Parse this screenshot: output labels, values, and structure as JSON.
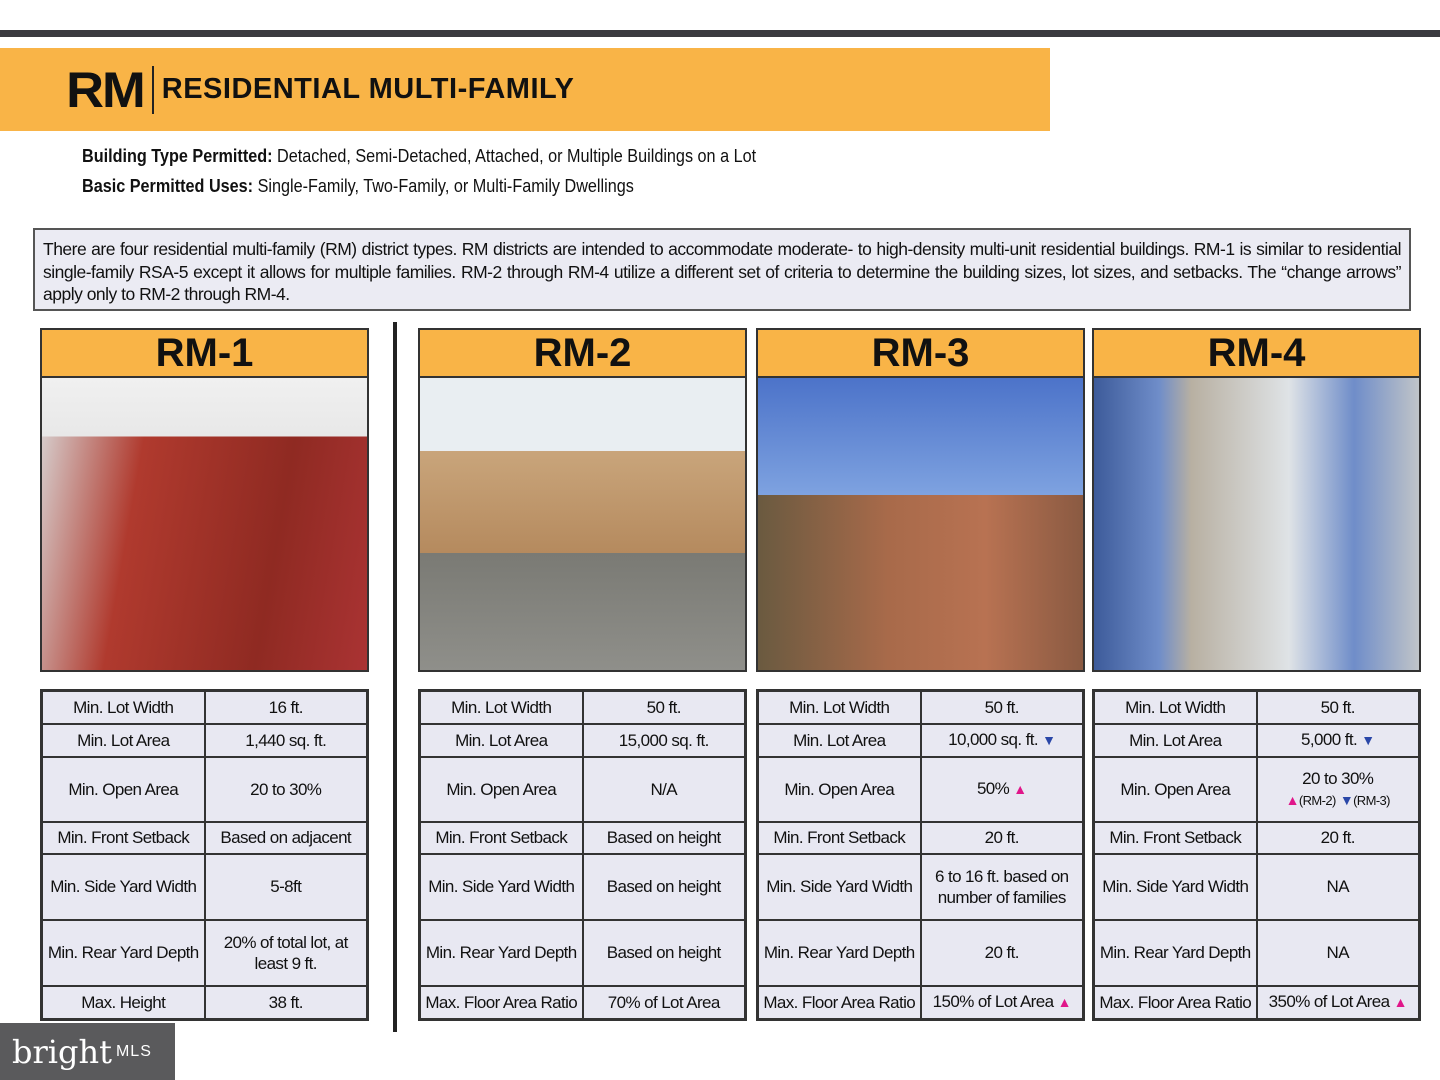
{
  "banner": {
    "code": "RM",
    "title": "RESIDENTIAL MULTI-FAMILY"
  },
  "info": [
    {
      "label": "Building Type Permitted:",
      "value": " Detached, Semi-Detached, Attached, or Multiple Buildings on a Lot"
    },
    {
      "label": "Basic Permitted Uses:",
      "value": " Single-Family, Two-Family, or Multi-Family Dwellings"
    }
  ],
  "description": "There are four residential multi-family (RM) district types. RM districts are intended to accommodate moderate- to high-density multi-unit residential buildings. RM-1 is similar to residential single-family RSA-5 except it allows for multiple families. RM-2 through RM-4 utilize a different set of criteria to determine the building sizes, lot sizes, and setbacks. The “change arrows” apply only to RM-2 through RM-4.",
  "colors": {
    "accent": "#f9b447",
    "up_arrow": "#e0168a",
    "down_arrow": "#2a47a8"
  },
  "districts": [
    {
      "name": "RM-1",
      "photo": "brick-rowhouses-photo",
      "rows": [
        {
          "label": "Min. Lot Width",
          "value": "16 ft."
        },
        {
          "label": "Min. Lot Area",
          "value": "1,440 sq. ft."
        },
        {
          "label": "Min. Open Area",
          "value": "20 to 30%"
        },
        {
          "label": "Min. Front Setback",
          "value": "Based on adjacent"
        },
        {
          "label": "Min. Side Yard Width",
          "value": "5-8ft"
        },
        {
          "label": "Min. Rear Yard Depth",
          "value": "20% of total lot, at least 9 ft."
        },
        {
          "label": "Max. Height",
          "value": "38 ft."
        }
      ]
    },
    {
      "name": "RM-2",
      "photo": "low-rise-apartments-photo",
      "rows": [
        {
          "label": "Min. Lot Width",
          "value": "50 ft."
        },
        {
          "label": "Min. Lot Area",
          "value": "15,000 sq. ft."
        },
        {
          "label": "Min. Open Area",
          "value": "N/A"
        },
        {
          "label": "Min. Front Setback",
          "value": "Based on height"
        },
        {
          "label": "Min. Side Yard Width",
          "value": "Based on height"
        },
        {
          "label": "Min. Rear Yard Depth",
          "value": "Based on height"
        },
        {
          "label": "Max. Floor Area Ratio",
          "value": "70% of Lot Area"
        }
      ]
    },
    {
      "name": "RM-3",
      "photo": "mid-rise-tower-photo",
      "rows": [
        {
          "label": "Min. Lot Width",
          "value": "50 ft."
        },
        {
          "label": "Min. Lot Area",
          "value": "10,000 sq. ft.",
          "arrow": "down"
        },
        {
          "label": "Min. Open Area",
          "value": "50%",
          "arrow": "up"
        },
        {
          "label": "Min. Front Setback",
          "value": "20 ft."
        },
        {
          "label": "Min. Side Yard Width",
          "value": "6 to 16 ft. based on number of families"
        },
        {
          "label": "Min. Rear Yard Depth",
          "value": "20 ft."
        },
        {
          "label": "Max. Floor Area Ratio",
          "value": "150% of Lot Area",
          "arrow": "up"
        }
      ]
    },
    {
      "name": "RM-4",
      "photo": "high-rise-tower-photo",
      "rows": [
        {
          "label": "Min. Lot Width",
          "value": "50 ft."
        },
        {
          "label": "Min. Lot Area",
          "value": "5,000 ft.",
          "arrow": "down"
        },
        {
          "label": "Min. Open Area",
          "value": "20 to 30%",
          "notes": [
            {
              "arrow": "up",
              "text": "(RM-2)"
            },
            {
              "arrow": "down",
              "text": "(RM-3)"
            }
          ]
        },
        {
          "label": "Min. Front Setback",
          "value": "20 ft."
        },
        {
          "label": "Min. Side Yard Width",
          "value": "NA"
        },
        {
          "label": "Min. Rear Yard Depth",
          "value": "NA"
        },
        {
          "label": "Max. Floor Area Ratio",
          "value": "350% of Lot Area",
          "arrow": "up"
        }
      ]
    }
  ],
  "logo": {
    "brand": "bright",
    "suffix": "MLS"
  }
}
